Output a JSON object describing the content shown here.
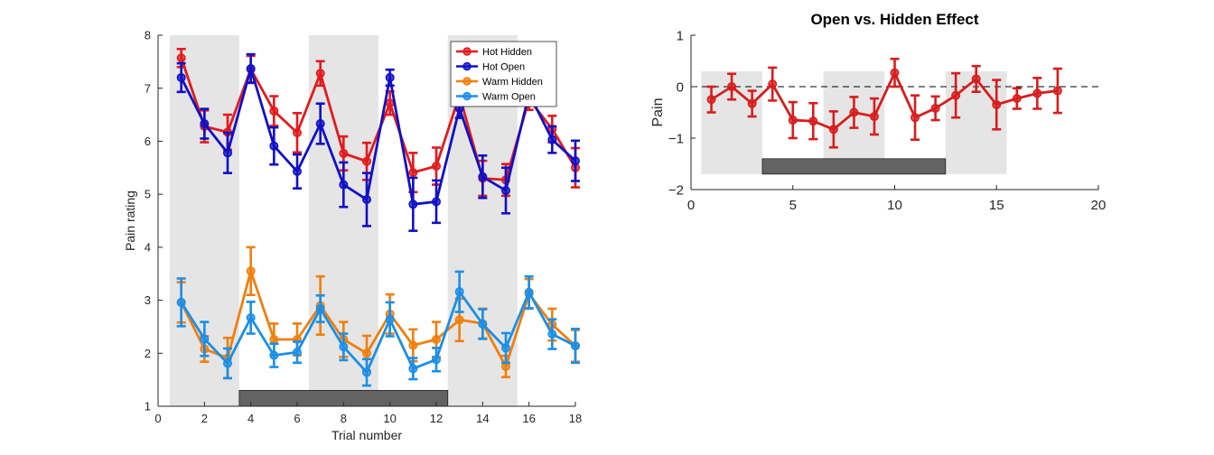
{
  "chart_data": [
    {
      "type": "line",
      "title": "",
      "xlabel": "Trial number",
      "ylabel": "Pain rating",
      "xlim": [
        0,
        18
      ],
      "ylim": [
        1,
        8
      ],
      "xticks": [
        "0",
        "2",
        "4",
        "6",
        "8",
        "10",
        "12",
        "14",
        "16",
        "18"
      ],
      "yticks": [
        "1",
        "2",
        "3",
        "4",
        "5",
        "6",
        "7",
        "8"
      ],
      "grid": false,
      "legend_position": "top-right",
      "shaded_trial_blocks": [
        [
          0.5,
          3.5
        ],
        [
          6.5,
          9.5
        ],
        [
          12.5,
          15.5
        ]
      ],
      "dark_bar": {
        "x": [
          3.5,
          12.5
        ],
        "y": [
          1.0,
          1.3
        ]
      },
      "x": [
        1,
        2,
        3,
        4,
        5,
        6,
        7,
        8,
        9,
        10,
        11,
        12,
        13,
        14,
        15,
        16,
        17,
        18
      ],
      "series": [
        {
          "name": "Hot Hidden",
          "color": "#e31a1c",
          "values": [
            7.57,
            6.28,
            6.17,
            7.36,
            6.57,
            6.16,
            7.28,
            5.77,
            5.62,
            6.72,
            5.41,
            5.53,
            6.87,
            5.3,
            5.27,
            6.79,
            6.23,
            5.5
          ],
          "errors": [
            0.17,
            0.3,
            0.33,
            0.25,
            0.28,
            0.37,
            0.23,
            0.32,
            0.35,
            0.22,
            0.37,
            0.35,
            0.28,
            0.33,
            0.3,
            0.2,
            0.25,
            0.37
          ]
        },
        {
          "name": "Hot Open",
          "color": "#1010c8",
          "values": [
            7.2,
            6.33,
            5.78,
            7.37,
            5.91,
            5.43,
            6.33,
            5.18,
            4.9,
            7.2,
            4.81,
            4.86,
            6.62,
            5.33,
            5.07,
            6.9,
            6.03,
            5.63
          ],
          "errors": [
            0.27,
            0.28,
            0.38,
            0.27,
            0.35,
            0.32,
            0.38,
            0.42,
            0.5,
            0.15,
            0.5,
            0.4,
            0.18,
            0.4,
            0.43,
            0.22,
            0.25,
            0.38
          ]
        },
        {
          "name": "Warm Hidden",
          "color": "#f07f0e",
          "values": [
            2.96,
            2.08,
            1.91,
            3.55,
            2.26,
            2.26,
            2.9,
            2.26,
            2.0,
            2.74,
            2.15,
            2.26,
            2.63,
            2.56,
            1.75,
            3.12,
            2.54,
            2.14
          ],
          "errors": [
            0.38,
            0.24,
            0.38,
            0.45,
            0.3,
            0.3,
            0.55,
            0.33,
            0.33,
            0.37,
            0.3,
            0.33,
            0.4,
            0.28,
            0.2,
            0.28,
            0.3,
            0.3
          ]
        },
        {
          "name": "Warm Open",
          "color": "#1a8fe8",
          "values": [
            2.96,
            2.27,
            1.81,
            2.67,
            1.96,
            2.02,
            2.84,
            2.12,
            1.64,
            2.64,
            1.71,
            1.88,
            3.16,
            2.55,
            2.1,
            3.15,
            2.36,
            2.14
          ],
          "errors": [
            0.45,
            0.32,
            0.28,
            0.3,
            0.22,
            0.2,
            0.25,
            0.25,
            0.25,
            0.32,
            0.2,
            0.22,
            0.38,
            0.28,
            0.28,
            0.3,
            0.28,
            0.32
          ]
        }
      ]
    },
    {
      "type": "line",
      "title": "Open vs. Hidden Effect",
      "xlabel": "",
      "ylabel": "Pain",
      "xlim": [
        0,
        20
      ],
      "ylim": [
        -2,
        1
      ],
      "xticks": [
        "0",
        "5",
        "10",
        "15",
        "20"
      ],
      "yticks": [
        "-2",
        "-1",
        "0",
        "1"
      ],
      "grid": false,
      "zero_reference_line": "dashed",
      "shaded_trial_blocks": [
        [
          0.5,
          3.5
        ],
        [
          6.5,
          9.5
        ],
        [
          12.5,
          15.5
        ]
      ],
      "shaded_y_range": [
        -1.7,
        0.3
      ],
      "dark_bar": {
        "x": [
          3.5,
          12.5
        ],
        "y": [
          -1.7,
          -1.4
        ]
      },
      "x": [
        1,
        2,
        3,
        4,
        5,
        6,
        7,
        8,
        9,
        10,
        11,
        12,
        13,
        14,
        15,
        16,
        17,
        18
      ],
      "series": [
        {
          "name": "",
          "color": "#d81d1d",
          "values": [
            -0.25,
            0.0,
            -0.33,
            0.05,
            -0.65,
            -0.67,
            -0.83,
            -0.5,
            -0.58,
            0.27,
            -0.6,
            -0.42,
            -0.17,
            0.15,
            -0.35,
            -0.23,
            -0.13,
            -0.08
          ],
          "errors": [
            0.25,
            0.25,
            0.25,
            0.32,
            0.35,
            0.35,
            0.35,
            0.3,
            0.35,
            0.27,
            0.43,
            0.23,
            0.43,
            0.25,
            0.48,
            0.2,
            0.3,
            0.43
          ]
        }
      ]
    }
  ]
}
